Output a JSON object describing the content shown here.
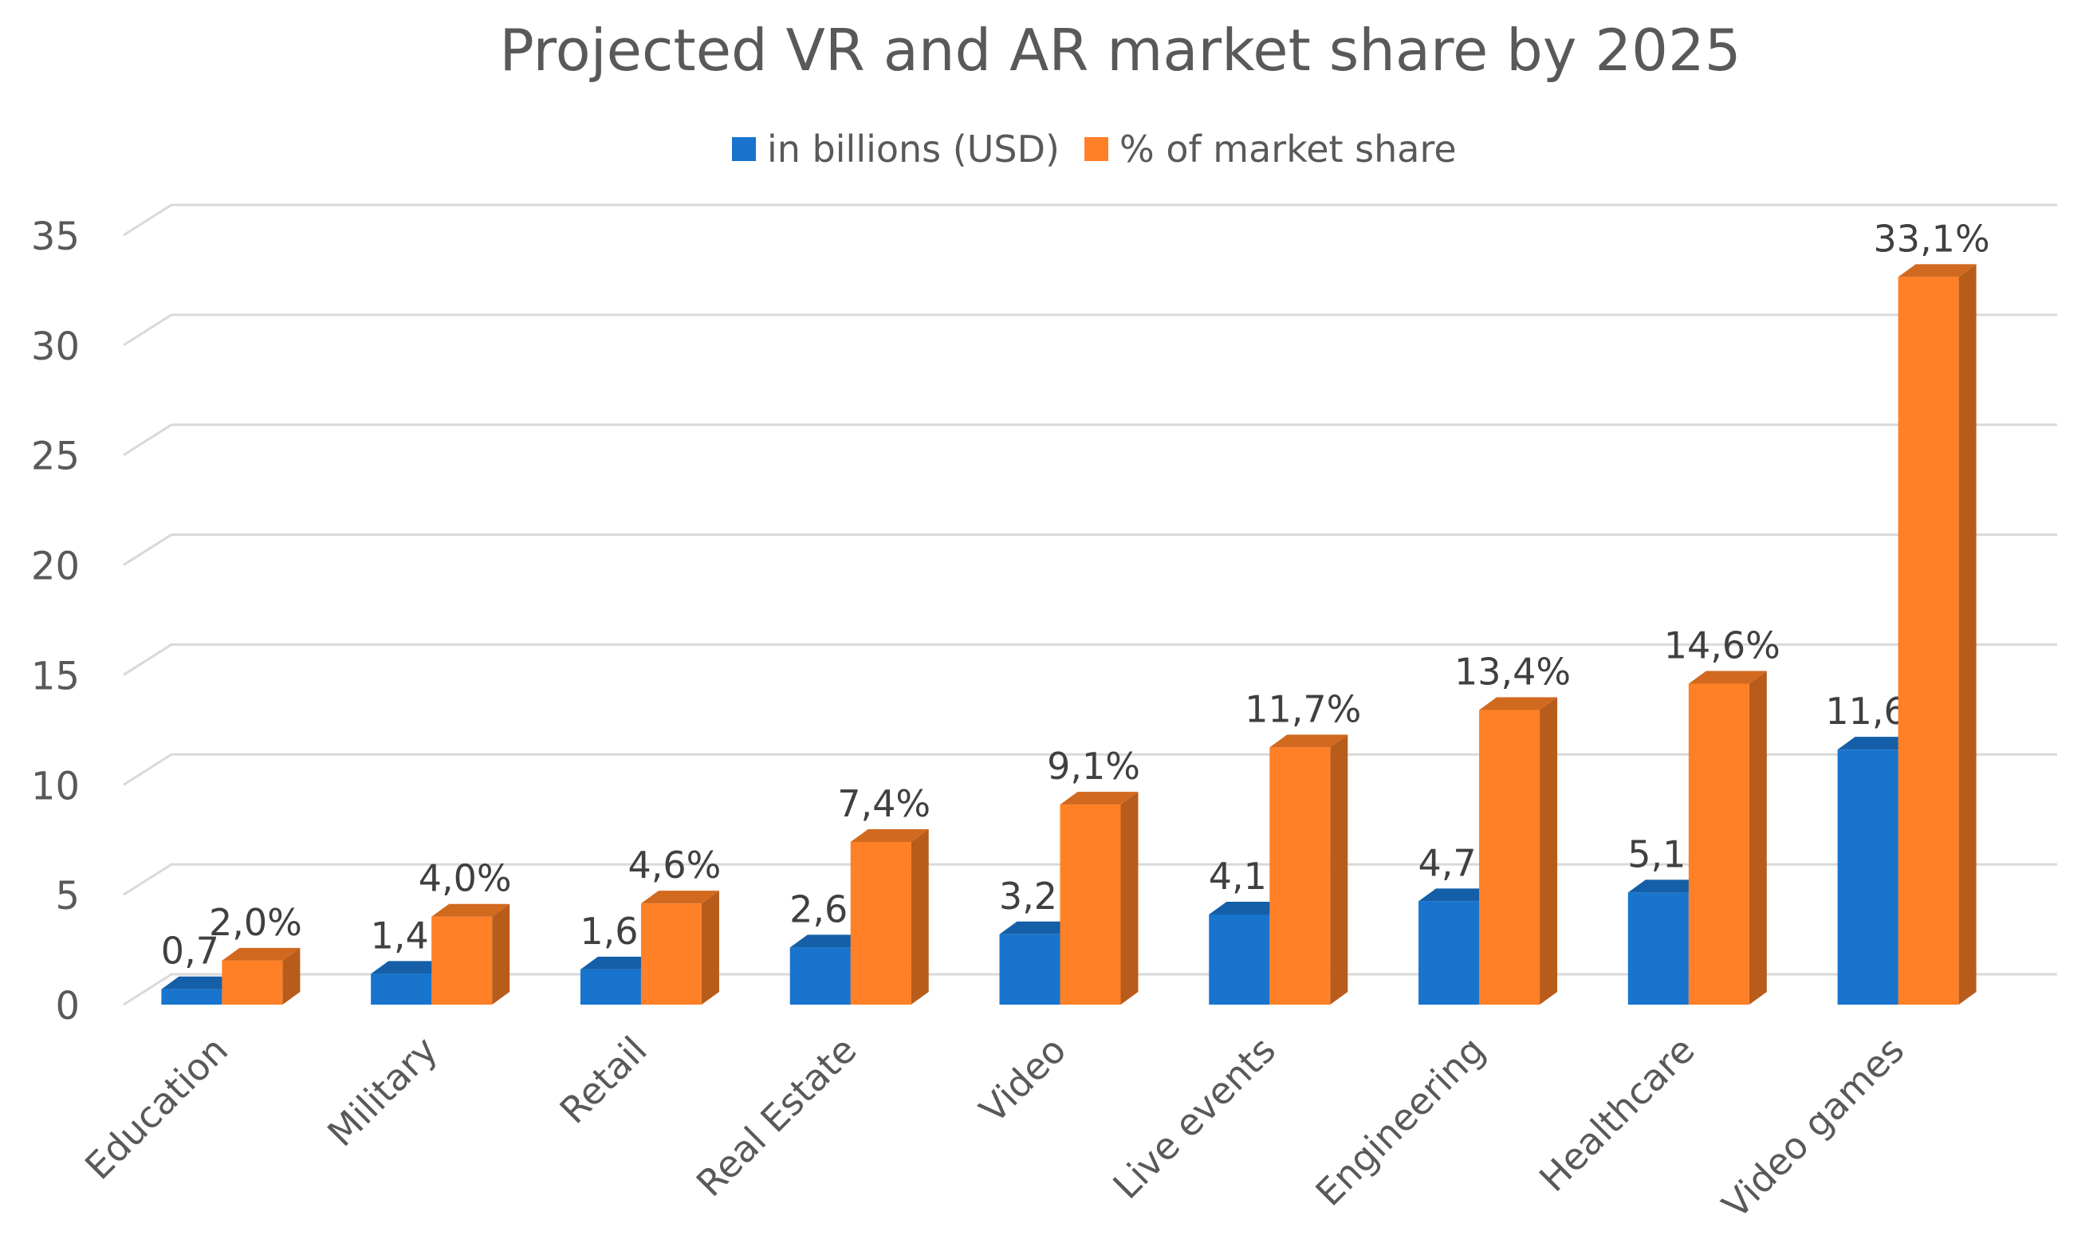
{
  "chart_data": {
    "type": "bar",
    "title": "Projected VR and AR market share by 2025",
    "categories": [
      "Education",
      "Military",
      "Retail",
      "Real Estate",
      "Video",
      "Live events",
      "Engineering",
      "Healthcare",
      "Video games"
    ],
    "series": [
      {
        "name": "in billions (USD)",
        "color": "#1874CD",
        "values": [
          0.7,
          1.4,
          1.6,
          2.6,
          3.2,
          4.1,
          4.7,
          5.1,
          11.6
        ],
        "labels": [
          "0,7",
          "1,4",
          "1,6",
          "2,6",
          "3,2",
          "4,1",
          "4,7",
          "5,1",
          "11,6"
        ]
      },
      {
        "name": "% of market share",
        "color": "#FF8026",
        "values": [
          2.0,
          4.0,
          4.6,
          7.4,
          9.1,
          11.7,
          13.4,
          14.6,
          33.1
        ],
        "labels": [
          "2,0%",
          "4,0%",
          "4,6%",
          "7,4%",
          "9,1%",
          "11,7%",
          "13,4%",
          "14,6%",
          "33,1%"
        ]
      }
    ],
    "yticks": [
      "0",
      "5",
      "10",
      "15",
      "20",
      "25",
      "30",
      "35"
    ],
    "ylim": [
      0,
      35
    ],
    "xlabel": "",
    "ylabel": "",
    "grid": true,
    "legend_position": "top",
    "style": "3d-clustered-column"
  }
}
